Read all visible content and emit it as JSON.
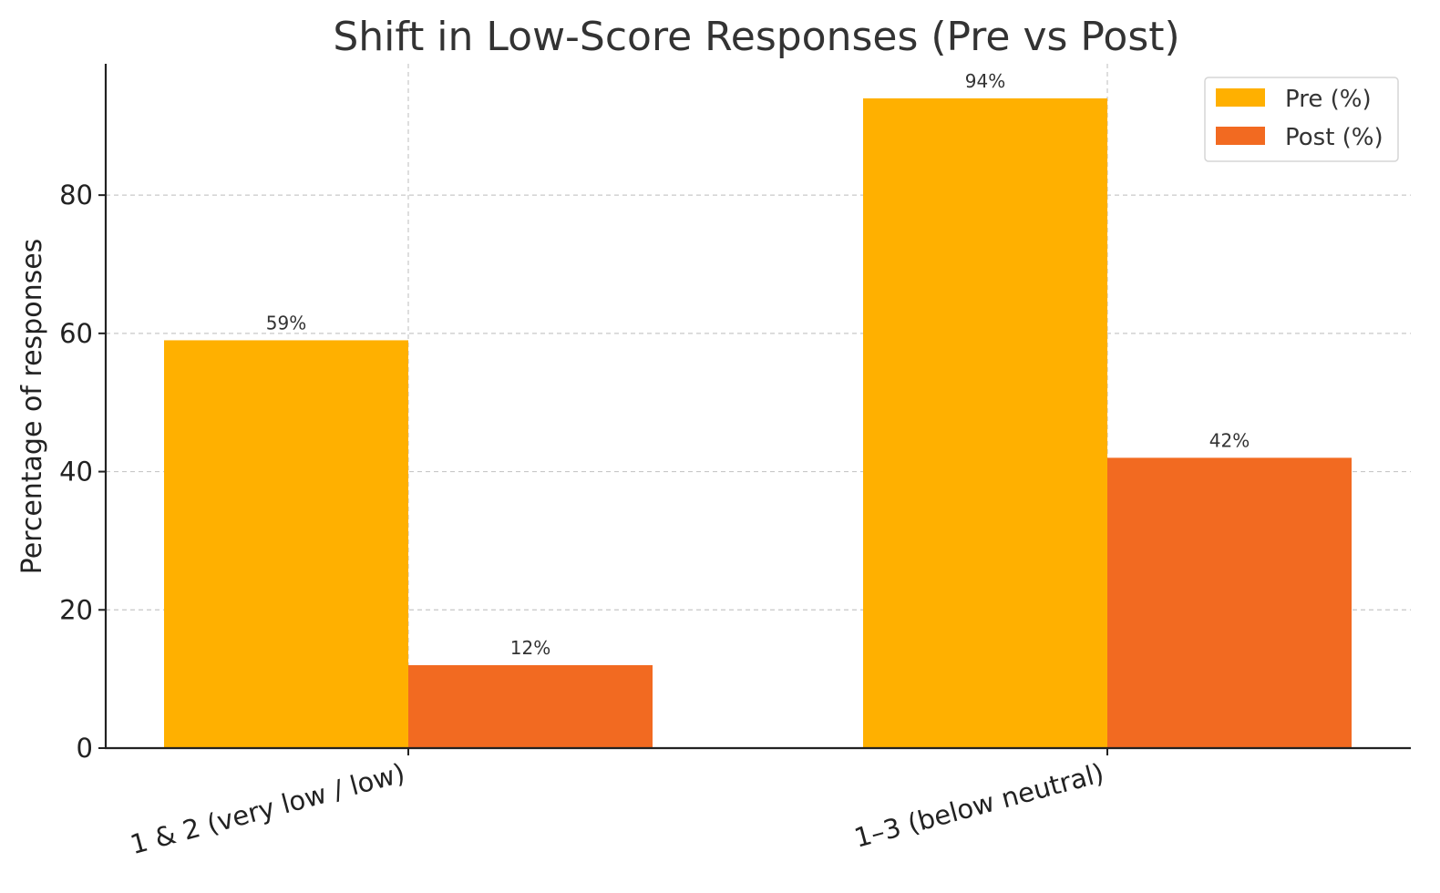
{
  "chart_data": {
    "type": "bar",
    "title": "Shift in Low-Score Responses (Pre vs Post)",
    "xlabel": "",
    "ylabel": "Percentage of responses",
    "categories": [
      "1 & 2 (very low / low)",
      "1–3 (below neutral)"
    ],
    "series": [
      {
        "name": "Pre (%)",
        "values": [
          59,
          94
        ],
        "color": "#FFB000"
      },
      {
        "name": "Post (%)",
        "values": [
          12,
          42
        ],
        "color": "#F26A21"
      }
    ],
    "data_labels": [
      [
        "59%",
        "94%"
      ],
      [
        "12%",
        "42%"
      ]
    ],
    "ylim": [
      0,
      99
    ],
    "yticks": [
      0,
      20,
      40,
      60,
      80
    ],
    "ytick_labels": [
      "0",
      "20",
      "40",
      "60",
      "80"
    ],
    "grid": true,
    "legend_position": "top-right"
  }
}
